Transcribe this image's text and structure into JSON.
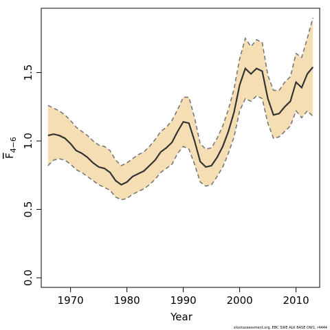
{
  "chart_data": {
    "type": "area",
    "title": "",
    "xlabel": "Year",
    "ylabel": {
      "main": "F",
      "subscript": "4−6"
    },
    "xlim": [
      1964.8,
      2014.2
    ],
    "ylim": [
      -0.07,
      1.97
    ],
    "xticks": [
      1970,
      1980,
      1990,
      2000,
      2010
    ],
    "yticks": [
      0.0,
      0.5,
      1.0,
      1.5
    ],
    "ytick_labels": [
      "0.0",
      "0.5",
      "1.0",
      "1.5"
    ],
    "grid": false,
    "legend": "none",
    "colors": {
      "band": "#f5deb3",
      "line": "#333333",
      "bound": "#777777"
    },
    "x": [
      1966,
      1967,
      1968,
      1969,
      1970,
      1971,
      1972,
      1973,
      1974,
      1975,
      1976,
      1977,
      1978,
      1979,
      1980,
      1981,
      1982,
      1983,
      1984,
      1985,
      1986,
      1987,
      1988,
      1989,
      1990,
      1991,
      1992,
      1993,
      1994,
      1995,
      1996,
      1997,
      1998,
      1999,
      2000,
      2001,
      2002,
      2003,
      2004,
      2005,
      2006,
      2007,
      2008,
      2009,
      2010,
      2011,
      2012,
      2013
    ],
    "series": [
      {
        "role": "estimate",
        "values": [
          1.04,
          1.05,
          1.04,
          1.02,
          0.98,
          0.93,
          0.91,
          0.88,
          0.84,
          0.81,
          0.8,
          0.77,
          0.71,
          0.68,
          0.7,
          0.74,
          0.76,
          0.78,
          0.82,
          0.86,
          0.92,
          0.95,
          0.99,
          1.07,
          1.14,
          1.13,
          1.0,
          0.85,
          0.81,
          0.82,
          0.88,
          0.96,
          1.07,
          1.21,
          1.41,
          1.53,
          1.49,
          1.53,
          1.51,
          1.31,
          1.19,
          1.2,
          1.25,
          1.29,
          1.43,
          1.39,
          1.49,
          1.54
        ]
      },
      {
        "role": "upper",
        "values": [
          1.26,
          1.24,
          1.22,
          1.19,
          1.15,
          1.1,
          1.07,
          1.04,
          1.0,
          0.97,
          0.96,
          0.93,
          0.86,
          0.82,
          0.84,
          0.87,
          0.9,
          0.92,
          0.96,
          1.01,
          1.07,
          1.1,
          1.15,
          1.23,
          1.32,
          1.32,
          1.17,
          0.98,
          0.94,
          0.95,
          1.02,
          1.11,
          1.23,
          1.38,
          1.6,
          1.75,
          1.69,
          1.74,
          1.72,
          1.48,
          1.37,
          1.37,
          1.43,
          1.47,
          1.64,
          1.61,
          1.75,
          1.9
        ]
      },
      {
        "role": "lower",
        "values": [
          0.82,
          0.86,
          0.87,
          0.86,
          0.83,
          0.79,
          0.77,
          0.74,
          0.71,
          0.68,
          0.66,
          0.64,
          0.59,
          0.57,
          0.58,
          0.61,
          0.63,
          0.65,
          0.68,
          0.72,
          0.77,
          0.8,
          0.83,
          0.91,
          0.96,
          0.94,
          0.83,
          0.7,
          0.67,
          0.68,
          0.74,
          0.81,
          0.91,
          1.03,
          1.22,
          1.31,
          1.29,
          1.33,
          1.31,
          1.13,
          1.02,
          1.03,
          1.07,
          1.11,
          1.22,
          1.17,
          1.22,
          1.18
        ]
      }
    ]
  },
  "credit": "stockassessment.org, EBC SWE ALK BASE OW1, r4444"
}
